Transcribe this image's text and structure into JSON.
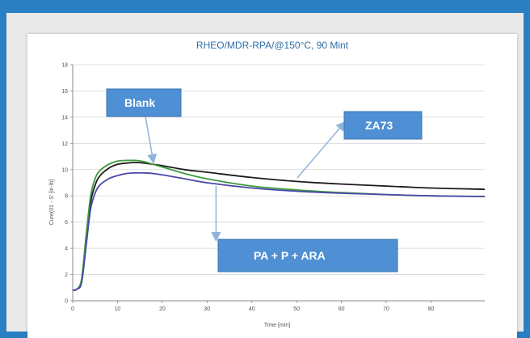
{
  "chart_data": {
    "type": "line",
    "title": "RHEO/MDR-RPA/@150°C, 90 Mint",
    "xlabel": "Time [min]",
    "ylabel": "Cure(01 - S' [in-lb]",
    "xlim": [
      0,
      92
    ],
    "ylim": [
      0,
      18
    ],
    "xticks": [
      "0",
      "10",
      "20",
      "30",
      "40",
      "50",
      "60",
      "70",
      "80"
    ],
    "yticks": [
      "0",
      "2",
      "4",
      "6",
      "8",
      "10",
      "12",
      "14",
      "16",
      "18"
    ],
    "grid": "horizontal",
    "legend": "none",
    "series": [
      {
        "color": "#1c1c1c",
        "x": [
          0,
          1,
          2,
          3,
          4,
          5,
          6,
          8,
          10,
          12,
          14,
          16,
          18,
          20,
          25,
          30,
          40,
          50,
          60,
          70,
          80,
          92
        ],
        "y": [
          0.8,
          0.9,
          1.5,
          4.5,
          7.5,
          8.8,
          9.5,
          10.1,
          10.4,
          10.5,
          10.55,
          10.5,
          10.4,
          10.3,
          10.0,
          9.8,
          9.4,
          9.1,
          8.9,
          8.75,
          8.6,
          8.5
        ]
      },
      {
        "color": "#3d9a3d",
        "x": [
          0,
          1,
          2,
          3,
          4,
          5,
          6,
          8,
          10,
          12,
          14,
          16,
          18,
          20,
          25,
          30,
          40,
          50,
          60,
          70,
          80,
          92
        ],
        "y": [
          0.8,
          0.9,
          1.7,
          5.0,
          8.0,
          9.3,
          9.9,
          10.4,
          10.65,
          10.7,
          10.7,
          10.6,
          10.4,
          10.2,
          9.7,
          9.3,
          8.75,
          8.45,
          8.25,
          8.1,
          8.0,
          7.95
        ]
      },
      {
        "color": "#4a47a8",
        "x": [
          0,
          1,
          2,
          3,
          4,
          5,
          6,
          8,
          10,
          12,
          14,
          16,
          18,
          20,
          25,
          30,
          40,
          50,
          60,
          70,
          80,
          92
        ],
        "y": [
          0.8,
          0.9,
          1.4,
          4.2,
          7.0,
          8.2,
          8.8,
          9.3,
          9.55,
          9.7,
          9.75,
          9.75,
          9.7,
          9.6,
          9.3,
          9.0,
          8.6,
          8.35,
          8.2,
          8.1,
          8.0,
          7.95
        ]
      }
    ],
    "annotations": [
      {
        "text": "Blank",
        "points_to": [
          18,
          10.5
        ]
      },
      {
        "text": "ZA73",
        "points_to": [
          50,
          9.1
        ]
      },
      {
        "text": "PA + P + ARA",
        "points_to": [
          32,
          9.0
        ]
      }
    ]
  }
}
